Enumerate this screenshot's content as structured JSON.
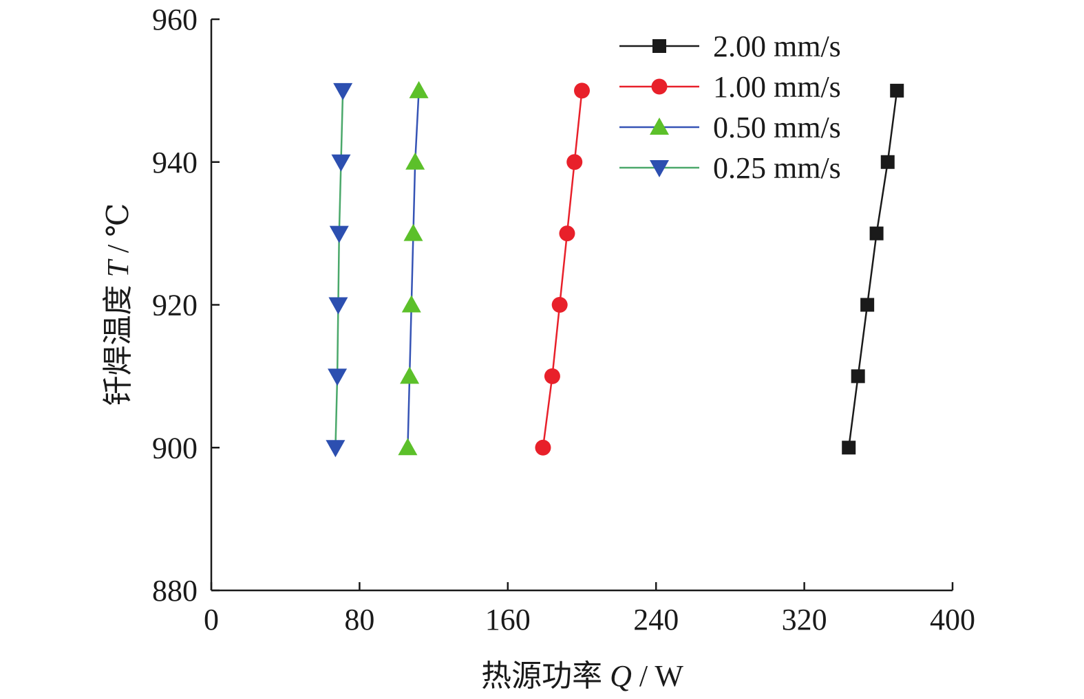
{
  "chart_data": {
    "type": "line",
    "xlabel": "热源功率 Q / W",
    "xlabel_prefix": "热源功率 ",
    "xlabel_var": "Q",
    "xlabel_unit": " / W",
    "ylabel": "钎焊温度 T / ℃",
    "ylabel_prefix": "钎焊温度 ",
    "ylabel_var": "T",
    "ylabel_unit": " / ℃",
    "xlim": [
      0,
      400
    ],
    "ylim": [
      880,
      960
    ],
    "xticks": [
      0,
      80,
      160,
      240,
      320,
      400
    ],
    "yticks": [
      880,
      900,
      920,
      940,
      960
    ],
    "grid": false,
    "legend_position": "top-right",
    "series": [
      {
        "name": "2.00 mm/s",
        "color": "#1a1a1a",
        "line_color": "#1a1a1a",
        "marker": "square",
        "points": [
          [
            344,
            900
          ],
          [
            349,
            910
          ],
          [
            354,
            920
          ],
          [
            359,
            930
          ],
          [
            365,
            940
          ],
          [
            370,
            950
          ]
        ]
      },
      {
        "name": "1.00 mm/s",
        "color": "#e8202a",
        "line_color": "#e8202a",
        "marker": "circle",
        "points": [
          [
            179,
            900
          ],
          [
            184,
            910
          ],
          [
            188,
            920
          ],
          [
            192,
            930
          ],
          [
            196,
            940
          ],
          [
            200,
            950
          ]
        ]
      },
      {
        "name": "0.50 mm/s",
        "color": "#5cc02a",
        "line_color": "#3553b5",
        "marker": "triangle-up",
        "points": [
          [
            106,
            900
          ],
          [
            107,
            910
          ],
          [
            108,
            920
          ],
          [
            109,
            930
          ],
          [
            110,
            940
          ],
          [
            112,
            950
          ]
        ]
      },
      {
        "name": "0.25 mm/s",
        "color": "#2c4fb0",
        "line_color": "#4aa86a",
        "marker": "triangle-down",
        "points": [
          [
            67,
            900
          ],
          [
            68,
            910
          ],
          [
            68.5,
            920
          ],
          [
            69,
            930
          ],
          [
            70,
            940
          ],
          [
            71,
            950
          ]
        ]
      }
    ]
  }
}
